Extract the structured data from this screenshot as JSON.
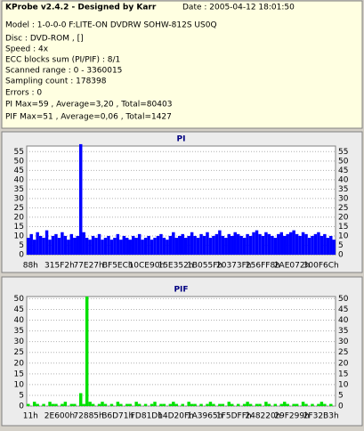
{
  "header": {
    "title": "KProbe v2.4.2 - Designed by Karr",
    "date": "Date : 2005-04-12 18:01:50",
    "lines": [
      "Model : 1-0-0-0 F:LITE-ON DVDRW SOHW-812S  US0Q",
      "Disc : DVD-ROM ,  []",
      "Speed : 4x",
      "ECC blocks sum (PI/PIF) : 8/1",
      "Scanned range : 0 - 3360015",
      "Sampling count : 178398",
      "Errors : 0",
      "PI Max=59 , Average=3,20 , Total=80403",
      "PIF Max=51 , Average=0,06 , Total=1427"
    ]
  },
  "chart_data": [
    {
      "type": "bar",
      "title": "PI",
      "color": "#0000ff",
      "ylim": [
        0,
        58
      ],
      "yticks": [
        0,
        5,
        10,
        15,
        20,
        25,
        30,
        35,
        40,
        45,
        50,
        55
      ],
      "grid": true,
      "x_labels": [
        "88h",
        "315F2h",
        "77E27h",
        "BF5ECh",
        "10CE90h",
        "15E352h",
        "1B055Fh",
        "20373Fh",
        "256FF8h",
        "2AE072h",
        "300F6Ch"
      ],
      "values": [
        9,
        11,
        8,
        12,
        10,
        9,
        13,
        8,
        10,
        11,
        9,
        12,
        10,
        8,
        11,
        9,
        10,
        59,
        12,
        9,
        8,
        10,
        9,
        11,
        8,
        9,
        10,
        8,
        9,
        11,
        8,
        10,
        9,
        8,
        10,
        9,
        11,
        8,
        9,
        10,
        8,
        9,
        10,
        11,
        9,
        8,
        10,
        12,
        9,
        10,
        11,
        9,
        10,
        12,
        10,
        9,
        11,
        10,
        12,
        9,
        10,
        11,
        13,
        10,
        9,
        11,
        10,
        12,
        11,
        10,
        9,
        11,
        10,
        12,
        13,
        11,
        10,
        12,
        11,
        10,
        9,
        11,
        12,
        10,
        11,
        12,
        13,
        11,
        10,
        12,
        11,
        9,
        10,
        11,
        12,
        10,
        11,
        9,
        10,
        8
      ]
    },
    {
      "type": "bar",
      "title": "PIF",
      "color": "#00e000",
      "ylim": [
        0,
        51
      ],
      "yticks": [
        0,
        5,
        10,
        15,
        20,
        25,
        30,
        35,
        40,
        45,
        50
      ],
      "grid": true,
      "x_labels": [
        "11h",
        "2E600h",
        "72885h",
        "B6D71h",
        "FD81Dh",
        "14D20Fh",
        "1A3965h",
        "1F5DFFh",
        "248220h",
        "29F299h",
        "2F32B3h"
      ],
      "values": [
        1,
        0,
        2,
        1,
        0,
        1,
        0,
        2,
        1,
        1,
        0,
        1,
        2,
        0,
        1,
        1,
        0,
        6,
        1,
        51,
        2,
        1,
        0,
        1,
        2,
        1,
        0,
        1,
        0,
        2,
        1,
        0,
        1,
        1,
        0,
        2,
        1,
        0,
        1,
        0,
        1,
        2,
        0,
        1,
        1,
        0,
        1,
        2,
        1,
        0,
        1,
        0,
        2,
        1,
        1,
        0,
        1,
        0,
        1,
        2,
        1,
        0,
        1,
        1,
        0,
        2,
        1,
        0,
        1,
        0,
        1,
        2,
        1,
        0,
        1,
        1,
        0,
        2,
        1,
        0,
        1,
        0,
        1,
        2,
        1,
        0,
        1,
        1,
        0,
        2,
        1,
        0,
        1,
        0,
        1,
        2,
        1,
        0,
        1,
        0
      ]
    }
  ]
}
